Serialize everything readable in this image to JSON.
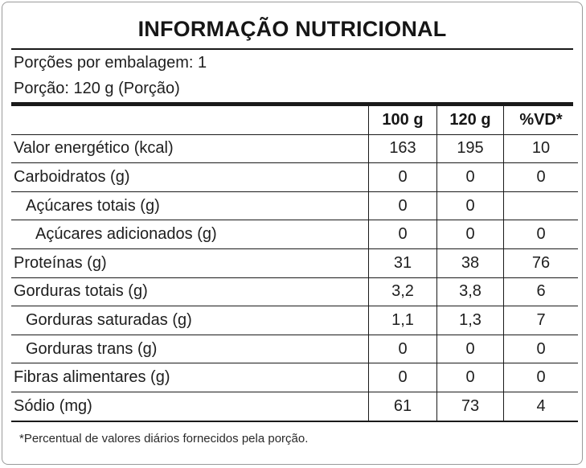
{
  "title": "INFORMAÇÃO NUTRICIONAL",
  "servings_per_package": "Porções por embalagem: 1",
  "serving_size": "Porção: 120 g (Porção)",
  "columns": [
    "",
    "100 g",
    "120 g",
    "%VD*"
  ],
  "rows": [
    {
      "label": "Valor energético (kcal)",
      "indent": 0,
      "v100": "163",
      "v120": "195",
      "vd": "10"
    },
    {
      "label": "Carboidratos (g)",
      "indent": 0,
      "v100": "0",
      "v120": "0",
      "vd": "0"
    },
    {
      "label": "Açúcares totais (g)",
      "indent": 1,
      "v100": "0",
      "v120": "0",
      "vd": ""
    },
    {
      "label": "Açúcares adicionados (g)",
      "indent": 2,
      "v100": "0",
      "v120": "0",
      "vd": "0"
    },
    {
      "label": "Proteínas (g)",
      "indent": 0,
      "v100": "31",
      "v120": "38",
      "vd": "76"
    },
    {
      "label": "Gorduras totais (g)",
      "indent": 0,
      "v100": "3,2",
      "v120": "3,8",
      "vd": "6"
    },
    {
      "label": "Gorduras saturadas (g)",
      "indent": 1,
      "v100": "1,1",
      "v120": "1,3",
      "vd": "7"
    },
    {
      "label": "Gorduras trans (g)",
      "indent": 1,
      "v100": "0",
      "v120": "0",
      "vd": "0"
    },
    {
      "label": "Fibras alimentares (g)",
      "indent": 0,
      "v100": "0",
      "v120": "0",
      "vd": "0"
    },
    {
      "label": "Sódio (mg)",
      "indent": 0,
      "v100": "61",
      "v120": "73",
      "vd": "4"
    }
  ],
  "footnote": "*Percentual de valores diários fornecidos pela porção."
}
